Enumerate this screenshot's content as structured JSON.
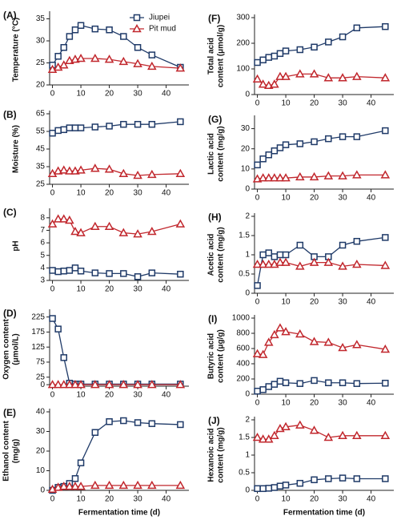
{
  "chart_data": [
    {
      "type": "line",
      "panel": "(A)",
      "ylabel": [
        "Temperature (°C)"
      ],
      "legend": true,
      "x": [
        0,
        2,
        4,
        6,
        8,
        10,
        15,
        20,
        25,
        30,
        35,
        45
      ],
      "xlim": [
        -1,
        48
      ],
      "xticks": [
        0,
        10,
        20,
        30,
        40
      ],
      "ylim": [
        20,
        36
      ],
      "yticks": [
        20,
        25,
        30,
        35
      ],
      "series": [
        {
          "name": "Jiupei",
          "color": "#1f3a68",
          "marker": "square",
          "values": [
            24.5,
            26.5,
            28.5,
            31,
            32.5,
            33.5,
            32.7,
            32.5,
            31,
            28.5,
            26.8,
            24
          ]
        },
        {
          "name": "Pit mud",
          "color": "#c1272d",
          "marker": "triangle",
          "values": [
            23.5,
            24,
            24.5,
            25.5,
            25.8,
            26,
            26,
            25.8,
            25.3,
            24.8,
            24.2,
            23.8
          ]
        }
      ]
    },
    {
      "type": "line",
      "panel": "(B)",
      "ylabel": [
        "Moisture (%)"
      ],
      "legend": false,
      "x": [
        0,
        2,
        4,
        6,
        8,
        10,
        15,
        20,
        25,
        30,
        35,
        45
      ],
      "xlim": [
        -1,
        48
      ],
      "xticks": [
        0,
        10,
        20,
        30,
        40
      ],
      "ylim": [
        25,
        65
      ],
      "yticks": [
        25,
        35,
        45,
        55,
        65
      ],
      "series": [
        {
          "name": "Jiupei",
          "color": "#1f3a68",
          "marker": "square",
          "values": [
            54,
            55.5,
            56,
            57,
            57,
            57,
            57.5,
            58,
            59,
            59,
            59,
            60.5
          ]
        },
        {
          "name": "Pit mud",
          "color": "#c1272d",
          "marker": "triangle",
          "values": [
            31,
            32.5,
            33,
            32.5,
            32.5,
            33,
            34,
            33.5,
            31,
            30,
            30.5,
            31
          ]
        }
      ]
    },
    {
      "type": "line",
      "panel": "(C)",
      "ylabel": [
        "pH"
      ],
      "legend": false,
      "x": [
        0,
        2,
        4,
        6,
        8,
        10,
        15,
        20,
        25,
        30,
        35,
        45
      ],
      "xlim": [
        -1,
        48
      ],
      "xticks": [
        0,
        10,
        20,
        30,
        40
      ],
      "ylim": [
        3,
        8.5
      ],
      "yticks": [
        3,
        4,
        5,
        6,
        7,
        8
      ],
      "series": [
        {
          "name": "Jiupei",
          "color": "#1f3a68",
          "marker": "square",
          "values": [
            3.8,
            3.7,
            3.75,
            3.8,
            4.0,
            3.75,
            3.6,
            3.55,
            3.55,
            3.3,
            3.6,
            3.5
          ]
        },
        {
          "name": "Pit mud",
          "color": "#c1272d",
          "marker": "triangle",
          "values": [
            7.5,
            7.9,
            7.9,
            7.8,
            6.9,
            6.8,
            7.3,
            7.3,
            6.8,
            6.7,
            6.9,
            7.5
          ]
        }
      ]
    },
    {
      "type": "line",
      "panel": "(D)",
      "ylabel": [
        "Oxygen content",
        "(μmol/L)"
      ],
      "legend": false,
      "x": [
        0,
        2,
        4,
        6,
        8,
        10,
        15,
        20,
        25,
        30,
        35,
        45
      ],
      "xlim": [
        -1,
        48
      ],
      "xticks": [
        0,
        10,
        20,
        30,
        40
      ],
      "ylim": [
        -5,
        240
      ],
      "yticks": [
        0,
        25,
        75,
        125,
        175,
        225
      ],
      "series": [
        {
          "name": "Jiupei",
          "color": "#1f3a68",
          "marker": "square",
          "values": [
            220,
            185,
            90,
            5,
            2,
            2,
            2,
            2,
            2,
            2,
            2,
            2
          ]
        },
        {
          "name": "Pit mud",
          "color": "#c1272d",
          "marker": "triangle",
          "values": [
            0,
            0,
            0,
            0,
            0,
            0,
            0,
            0,
            0,
            0,
            0,
            0
          ]
        }
      ]
    },
    {
      "type": "line",
      "panel": "(E)",
      "ylabel": [
        "Ethanol content",
        "(mg/g)"
      ],
      "legend": false,
      "xlabel": "Fermentation time (d)",
      "x": [
        0,
        2,
        4,
        6,
        8,
        10,
        15,
        20,
        25,
        30,
        35,
        45
      ],
      "xlim": [
        -1,
        48
      ],
      "xticks": [
        0,
        10,
        20,
        30,
        40
      ],
      "ylim": [
        0,
        40
      ],
      "yticks": [
        0,
        10,
        20,
        30,
        40
      ],
      "series": [
        {
          "name": "Jiupei",
          "color": "#1f3a68",
          "marker": "square",
          "values": [
            0,
            1.5,
            2,
            3.5,
            6,
            14,
            29.5,
            35,
            35.5,
            34.5,
            34,
            33.5
          ]
        },
        {
          "name": "Pit mud",
          "color": "#c1272d",
          "marker": "triangle",
          "values": [
            0.5,
            1.5,
            2,
            2,
            2,
            2,
            2.5,
            2.5,
            2.5,
            2.5,
            2.5,
            2.5
          ]
        }
      ]
    },
    {
      "type": "line",
      "panel": "(F)",
      "ylabel": [
        "Total acid",
        "content (μmol/g)"
      ],
      "legend": false,
      "x": [
        0,
        2,
        4,
        6,
        8,
        10,
        15,
        20,
        25,
        30,
        35,
        45
      ],
      "xlim": [
        -1,
        48
      ],
      "xticks": [
        0,
        10,
        20,
        30,
        40
      ],
      "ylim": [
        0,
        300
      ],
      "yticks": [
        0,
        100,
        200,
        300
      ],
      "series": [
        {
          "name": "Jiupei",
          "color": "#1f3a68",
          "marker": "square",
          "values": [
            125,
            135,
            145,
            150,
            160,
            170,
            175,
            185,
            205,
            225,
            260,
            265
          ]
        },
        {
          "name": "Pit mud",
          "color": "#c1272d",
          "marker": "triangle",
          "values": [
            60,
            40,
            35,
            40,
            70,
            70,
            80,
            80,
            65,
            65,
            70,
            65
          ]
        }
      ]
    },
    {
      "type": "line",
      "panel": "(G)",
      "ylabel": [
        "Lactic acid",
        "content (mg/g)"
      ],
      "legend": false,
      "x": [
        0,
        2,
        4,
        6,
        8,
        10,
        15,
        20,
        25,
        30,
        35,
        45
      ],
      "xlim": [
        -1,
        48
      ],
      "xticks": [
        0,
        10,
        20,
        30,
        40
      ],
      "ylim": [
        0,
        35
      ],
      "yticks": [
        0,
        10,
        20,
        30
      ],
      "series": [
        {
          "name": "Jiupei",
          "color": "#1f3a68",
          "marker": "square",
          "values": [
            12,
            15,
            17,
            19,
            20.5,
            22,
            22.5,
            23.5,
            25,
            26,
            26,
            29
          ]
        },
        {
          "name": "Pit mud",
          "color": "#c1272d",
          "marker": "triangle",
          "values": [
            5,
            5.5,
            5.5,
            5.5,
            5.5,
            5.5,
            6,
            6,
            6.5,
            6.5,
            7,
            7
          ]
        }
      ]
    },
    {
      "type": "line",
      "panel": "(H)",
      "ylabel": [
        "Acetic acid",
        "content (mg/g)"
      ],
      "legend": false,
      "x": [
        0,
        2,
        4,
        6,
        8,
        10,
        15,
        20,
        25,
        30,
        35,
        45
      ],
      "xlim": [
        -1,
        48
      ],
      "xticks": [
        0,
        10,
        20,
        30,
        40
      ],
      "ylim": [
        0,
        2
      ],
      "yticks": [
        0,
        0.5,
        1,
        1.5,
        2
      ],
      "series": [
        {
          "name": "Jiupei",
          "color": "#1f3a68",
          "marker": "square",
          "values": [
            0.2,
            1.0,
            1.05,
            0.95,
            1.0,
            1.0,
            1.25,
            0.95,
            0.95,
            1.25,
            1.35,
            1.45
          ]
        },
        {
          "name": "Pit mud",
          "color": "#c1272d",
          "marker": "triangle",
          "values": [
            0.75,
            0.75,
            0.75,
            0.75,
            0.8,
            0.8,
            0.7,
            0.8,
            0.8,
            0.7,
            0.75,
            0.72
          ]
        }
      ]
    },
    {
      "type": "line",
      "panel": "(I)",
      "ylabel": [
        "Butyric acid",
        "content (μg/g)"
      ],
      "legend": false,
      "x": [
        0,
        2,
        4,
        6,
        8,
        10,
        15,
        20,
        25,
        30,
        35,
        45
      ],
      "xlim": [
        -1,
        48
      ],
      "xticks": [
        0,
        10,
        20,
        30,
        40
      ],
      "ylim": [
        0,
        1000
      ],
      "yticks": [
        0,
        200,
        400,
        600,
        800,
        1000
      ],
      "series": [
        {
          "name": "Jiupei",
          "color": "#1f3a68",
          "marker": "square",
          "values": [
            40,
            60,
            100,
            130,
            170,
            150,
            140,
            180,
            150,
            150,
            140,
            145
          ]
        },
        {
          "name": "Pit mud",
          "color": "#c1272d",
          "marker": "triangle",
          "values": [
            530,
            520,
            680,
            780,
            870,
            820,
            790,
            690,
            680,
            610,
            650,
            590
          ]
        }
      ]
    },
    {
      "type": "line",
      "panel": "(J)",
      "ylabel": [
        "Hexanoic acid",
        "content (mg/g)"
      ],
      "legend": false,
      "xlabel": "Fermentation time (d)",
      "x": [
        0,
        2,
        4,
        6,
        8,
        10,
        15,
        20,
        25,
        30,
        35,
        45
      ],
      "xlim": [
        -1,
        48
      ],
      "xticks": [
        0,
        10,
        20,
        30,
        40
      ],
      "ylim": [
        0,
        2
      ],
      "yticks": [
        0,
        0.5,
        1,
        1.5,
        2
      ],
      "series": [
        {
          "name": "Jiupei",
          "color": "#1f3a68",
          "marker": "square",
          "values": [
            0.05,
            0.05,
            0.06,
            0.08,
            0.12,
            0.15,
            0.2,
            0.3,
            0.33,
            0.35,
            0.33,
            0.33
          ]
        },
        {
          "name": "Pit mud",
          "color": "#c1272d",
          "marker": "triangle",
          "values": [
            1.5,
            1.45,
            1.45,
            1.55,
            1.75,
            1.8,
            1.85,
            1.7,
            1.5,
            1.55,
            1.55,
            1.55
          ]
        }
      ]
    }
  ]
}
